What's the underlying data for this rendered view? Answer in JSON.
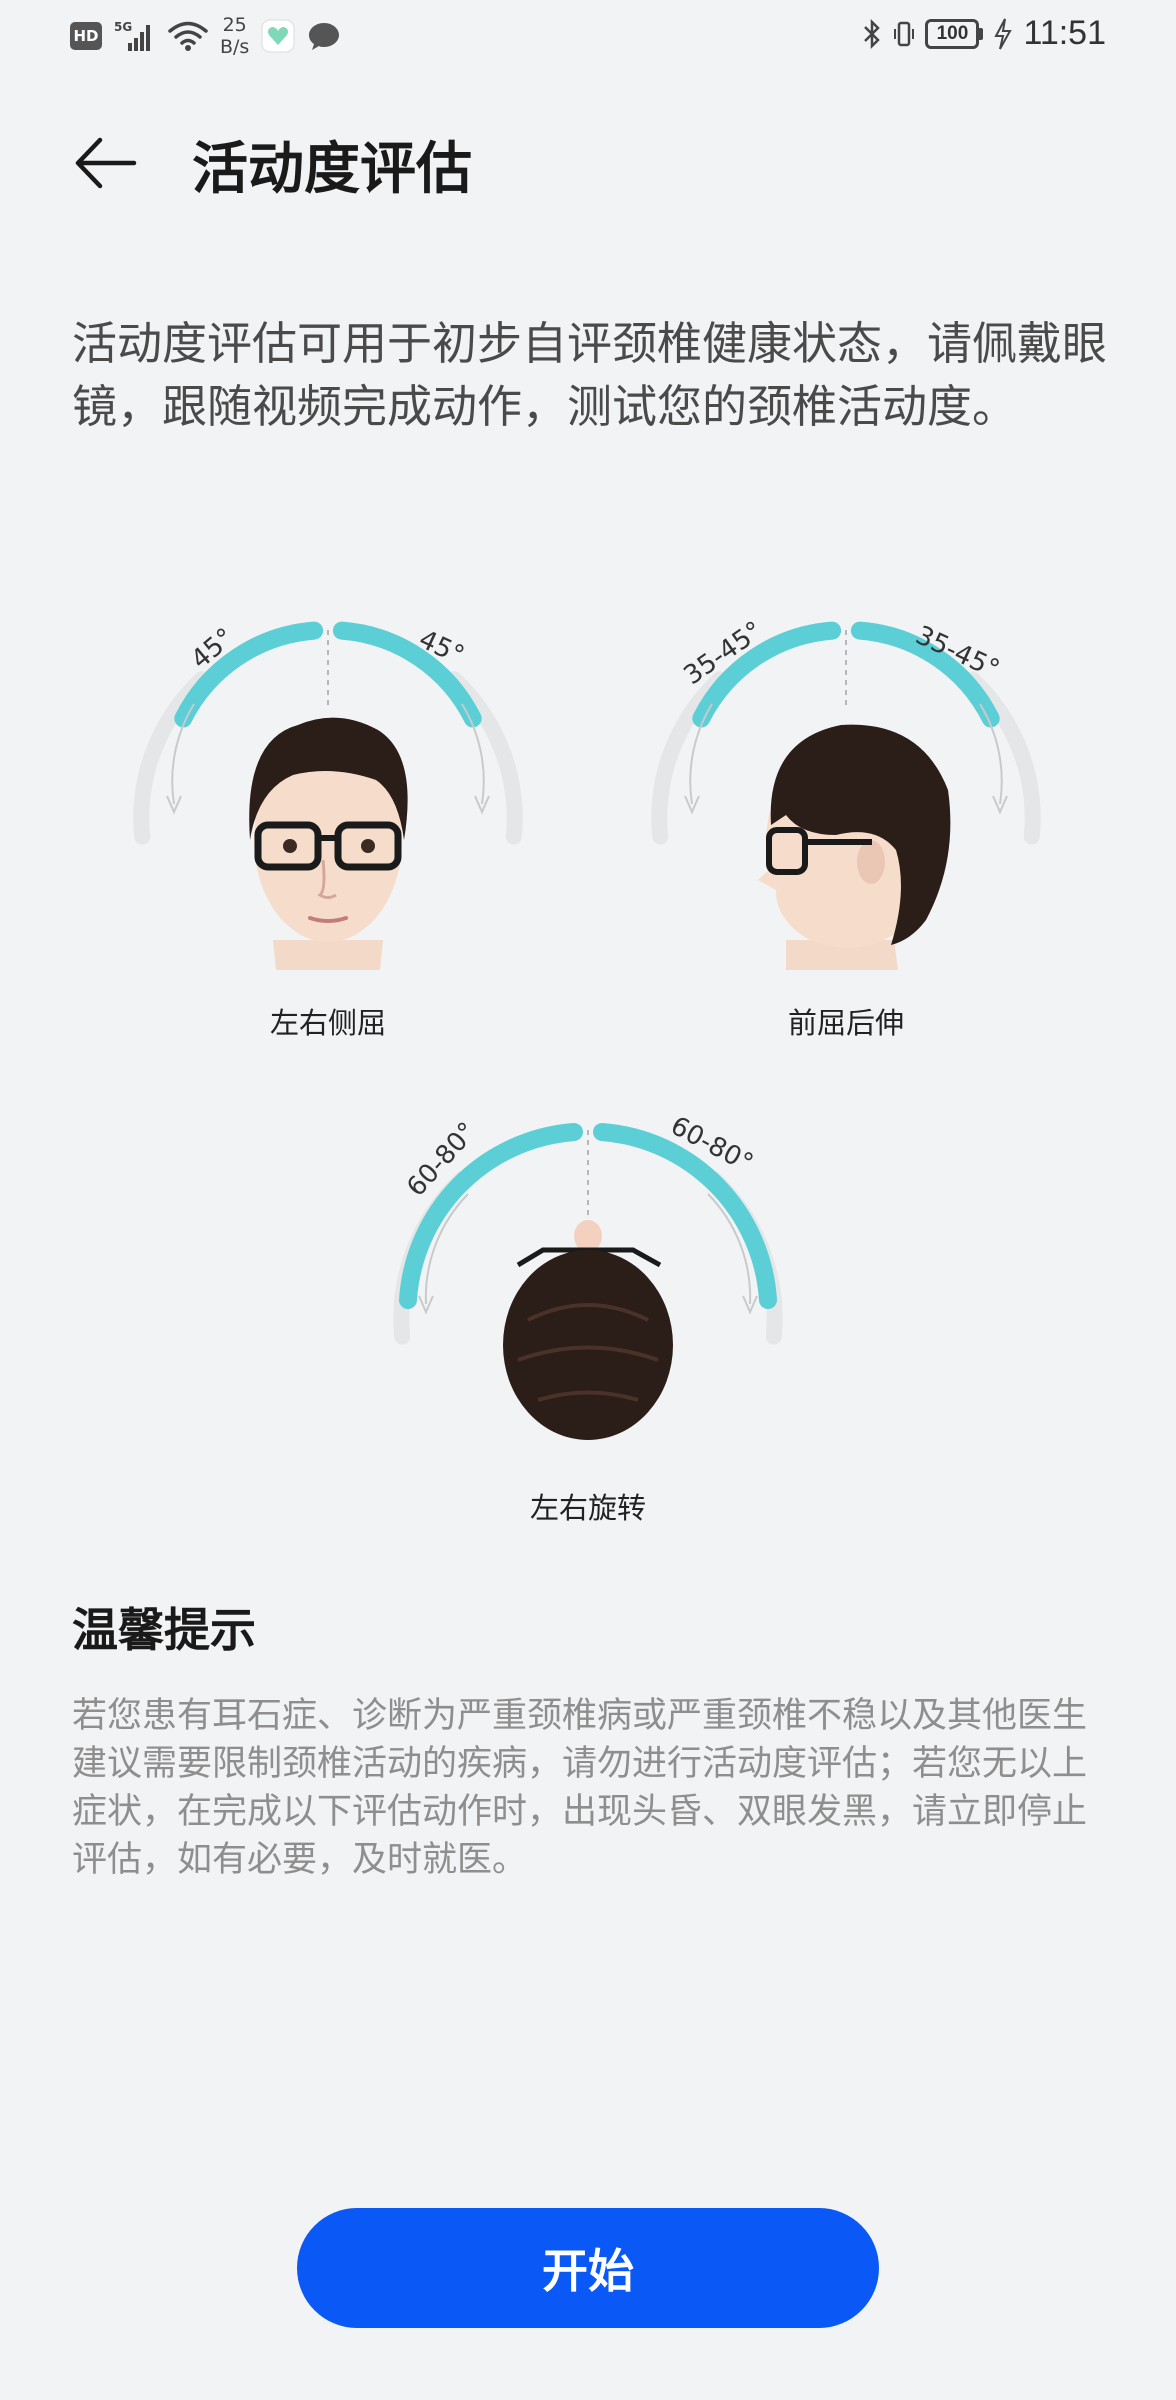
{
  "status_bar": {
    "hd": "HD",
    "network": "5G",
    "speed_value": "25",
    "speed_unit": "B/s",
    "battery": "100",
    "time": "11:51"
  },
  "header": {
    "title": "活动度评估",
    "back_icon": "arrow-left-icon"
  },
  "intro": "活动度评估可用于初步自评颈椎健康状态，请佩戴眼镜，跟随视频完成动作，测试您的颈椎活动度。",
  "figures": [
    {
      "label": "左右侧屈",
      "left_angle": "45°",
      "right_angle": "45°"
    },
    {
      "label": "前屈后伸",
      "left_angle": "35-45°",
      "right_angle": "35-45°"
    },
    {
      "label": "左右旋转",
      "left_angle": "60-80°",
      "right_angle": "60-80°"
    }
  ],
  "tips": {
    "title": "温馨提示",
    "body": "若您患有耳石症、诊断为严重颈椎病或严重颈椎不稳以及其他医生建议需要限制颈椎活动的疾病，请勿进行活动度评估；若您无以上症状，在完成以下评估动作时，出现头昏、双眼发黑，请立即停止评估，如有必要，及时就医。"
  },
  "start_button": "开始",
  "colors": {
    "background": "#f1f3f5",
    "accent": "#0a59f7",
    "arc_teal": "#5ccfd6",
    "arc_grey": "#e4e6e8"
  }
}
